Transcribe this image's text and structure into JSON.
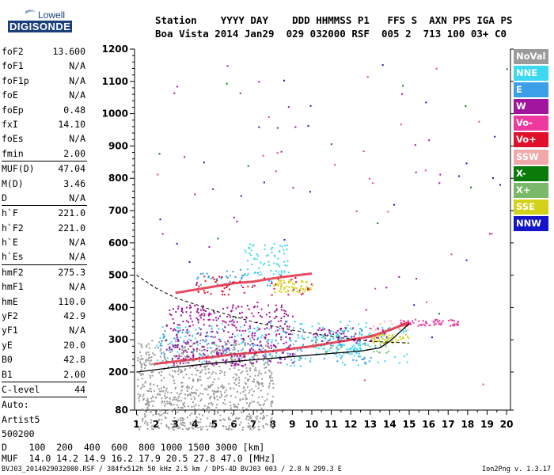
{
  "logo": {
    "company": "Lowell",
    "product": "DIGISONDE"
  },
  "header": {
    "labels": "Station    YYYY DAY    DDD HHMMSS P1   FFS S  AXN PPS IGA PS",
    "values": "Boa Vista 2014 Jan29  029 032000 RSF  005 2  713 100 03+ C0"
  },
  "parameters": {
    "group1": [
      {
        "name": "foF2",
        "value": "13.600"
      },
      {
        "name": "foF1",
        "value": "N/A"
      },
      {
        "name": "foF1p",
        "value": "N/A"
      },
      {
        "name": "foE",
        "value": "N/A"
      },
      {
        "name": "foEp",
        "value": "0.48"
      },
      {
        "name": "fxI",
        "value": "14.10"
      },
      {
        "name": "foEs",
        "value": "N/A"
      },
      {
        "name": "fmin",
        "value": "2.00"
      }
    ],
    "group2": [
      {
        "name": "MUF(D)",
        "value": "47.04"
      },
      {
        "name": "M(D)",
        "value": "3.46"
      },
      {
        "name": "D",
        "value": "N/A"
      }
    ],
    "group3": [
      {
        "name": "h`F",
        "value": "221.0"
      },
      {
        "name": "h`F2",
        "value": "221.0"
      },
      {
        "name": "h`E",
        "value": "N/A"
      },
      {
        "name": "h`Es",
        "value": "N/A"
      }
    ],
    "group4": [
      {
        "name": "hmF2",
        "value": "275.3"
      },
      {
        "name": "hmF1",
        "value": "N/A"
      },
      {
        "name": "hmE",
        "value": "110.0"
      },
      {
        "name": "yF2",
        "value": "42.9"
      },
      {
        "name": "yF1",
        "value": "N/A"
      },
      {
        "name": "yE",
        "value": "20.0"
      },
      {
        "name": "B0",
        "value": "42.8"
      },
      {
        "name": "B1",
        "value": "2.00"
      }
    ],
    "group5": [
      {
        "name": "C-level",
        "value": "44"
      }
    ],
    "auto": [
      "Auto:",
      "Artist5",
      "500200"
    ]
  },
  "legend": [
    {
      "label": "NoVal",
      "color": "#9b9b9b"
    },
    {
      "label": "NNE",
      "color": "#3cd9f0"
    },
    {
      "label": "E",
      "color": "#3a9ee8"
    },
    {
      "label": "W",
      "color": "#a0149e"
    },
    {
      "label": "Vo-",
      "color": "#ee3a9e"
    },
    {
      "label": "Vo+",
      "color": "#e0102a"
    },
    {
      "label": "SSW",
      "color": "#f0a8a8"
    },
    {
      "label": "X-",
      "color": "#0a7a0a"
    },
    {
      "label": "X+",
      "color": "#7ab86a"
    },
    {
      "label": "SSE",
      "color": "#d2d21a"
    },
    {
      "label": "NNW",
      "color": "#1414c8"
    }
  ],
  "chart_data": {
    "type": "scatter",
    "title": "",
    "xlabel": "",
    "ylabel": "",
    "xlim": [
      0.9,
      20.2
    ],
    "ylim": [
      80,
      1200
    ],
    "x_ticks": [
      1,
      2,
      3,
      4,
      5,
      6,
      7,
      8,
      9,
      10,
      11,
      12,
      13,
      14,
      15,
      16,
      17,
      18,
      19,
      20
    ],
    "y_ticks": [
      80,
      200,
      300,
      400,
      500,
      600,
      700,
      800,
      900,
      1000,
      1100,
      1200
    ],
    "grid": false,
    "series": [
      {
        "name": "NoVal",
        "color": "#9b9b9b",
        "clusters": [
          [
            8,
            1,
            20,
            300,
            900,
            20
          ]
        ]
      },
      {
        "name": "NNE",
        "color": "#3cd9f0",
        "clusters": [
          [
            2,
            15,
            220,
            360,
            180
          ],
          [
            6.5,
            8.8,
            500,
            600,
            70
          ],
          [
            10,
            12.5,
            250,
            320,
            90
          ]
        ]
      },
      {
        "name": "E",
        "color": "#3a9ee8",
        "clusters": [
          [
            2,
            13,
            230,
            340,
            160
          ],
          [
            4,
            8,
            470,
            520,
            40
          ]
        ]
      },
      {
        "name": "W",
        "color": "#a0149e",
        "clusters": [
          [
            2.5,
            9,
            220,
            410,
            380
          ],
          [
            10,
            14,
            290,
            340,
            60
          ],
          [
            2,
            20,
            300,
            1200,
            30
          ]
        ]
      },
      {
        "name": "Vo-",
        "color": "#ee3a9e",
        "clusters": [
          [
            14.5,
            17.5,
            345,
            365,
            70
          ],
          [
            2,
            20,
            100,
            1200,
            25
          ]
        ]
      },
      {
        "name": "Vo+",
        "color": "#e0102a",
        "clusters": [
          [
            4,
            10,
            440,
            500,
            60
          ]
        ]
      },
      {
        "name": "SSW",
        "color": "#f0a8a8",
        "clusters": [
          [
            13,
            15,
            330,
            360,
            20
          ]
        ]
      },
      {
        "name": "X-",
        "color": "#0a7a0a",
        "clusters": [
          [
            2,
            20,
            250,
            1200,
            12
          ]
        ]
      },
      {
        "name": "X+",
        "color": "#7ab86a",
        "clusters": [
          [
            10,
            14,
            260,
            300,
            30
          ]
        ]
      },
      {
        "name": "SSE",
        "color": "#d2d21a",
        "clusters": [
          [
            8,
            10,
            450,
            490,
            60
          ],
          [
            13,
            15,
            290,
            320,
            50
          ]
        ]
      },
      {
        "name": "NNW",
        "color": "#1414c8",
        "clusters": [
          [
            2,
            20,
            230,
            1200,
            25
          ]
        ]
      }
    ],
    "traces": [
      {
        "name": "o-trace",
        "color": "#e0102a",
        "points": [
          [
            1.9,
            225
          ],
          [
            4,
            240
          ],
          [
            6,
            255
          ],
          [
            8,
            265
          ],
          [
            10,
            280
          ],
          [
            12,
            300
          ],
          [
            13,
            310
          ],
          [
            14,
            330
          ],
          [
            15,
            355
          ]
        ]
      },
      {
        "name": "x-trace",
        "color": "#e0102a",
        "points": [
          [
            3,
            445
          ],
          [
            4,
            455
          ],
          [
            5,
            465
          ],
          [
            6,
            475
          ],
          [
            7,
            480
          ],
          [
            8,
            490
          ],
          [
            9,
            498
          ],
          [
            10,
            505
          ]
        ]
      }
    ],
    "profile": {
      "points": [
        [
          1,
          200
        ],
        [
          3,
          215
        ],
        [
          5,
          228
        ],
        [
          7,
          238
        ],
        [
          9,
          248
        ],
        [
          11,
          258
        ],
        [
          12.5,
          265
        ],
        [
          13.5,
          275
        ],
        [
          14,
          295
        ],
        [
          15,
          350
        ]
      ]
    },
    "profile_dashed": {
      "points": [
        [
          1,
          500
        ],
        [
          2,
          460
        ],
        [
          3,
          430
        ],
        [
          5,
          390
        ],
        [
          7,
          355
        ],
        [
          9,
          330
        ],
        [
          11,
          310
        ],
        [
          13,
          295
        ],
        [
          15,
          290
        ]
      ]
    }
  },
  "bottom": {
    "d_row": "D    100  200  400  600  800 1000 1500 3000 [km]",
    "muf_row": "MUF  14.0 14.2 14.9 16.2 17.9 20.5 27.8 47.0 [MHz]",
    "footer": "BVJ03_2014029032000.RSF / 384fx512h 50 kHz 2.5 km / DPS-4D BVJ03 003 / 2.8 N 299.3 E",
    "version": "Ion2Png v. 1.3.17"
  }
}
